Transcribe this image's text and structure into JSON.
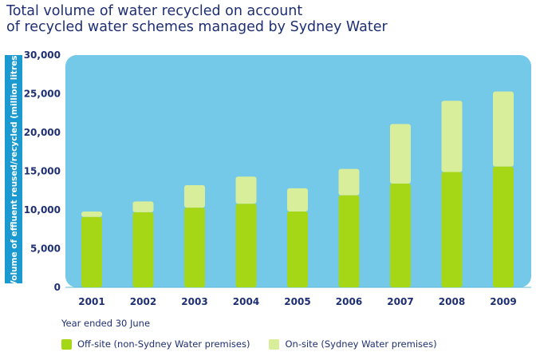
{
  "chart_data": {
    "type": "bar",
    "stacked": true,
    "title_lines": [
      "Total volume of water recycled on account",
      "of recycled water schemes managed by Sydney Water"
    ],
    "xlabel": "Year ended 30 June",
    "ylabel": "Volume of effluent reused/recycled (million litres)",
    "ylim": [
      0,
      30000
    ],
    "yticks": [
      0,
      5000,
      10000,
      15000,
      20000,
      25000,
      30000
    ],
    "ytick_labels": [
      "0",
      "5,000",
      "10,000",
      "15,000",
      "20,000",
      "25,000",
      "30,000"
    ],
    "categories": [
      "2001",
      "2002",
      "2003",
      "2004",
      "2005",
      "2006",
      "2007",
      "2008",
      "2009"
    ],
    "series": [
      {
        "name": "Off-site (non-Sydney Water premises)",
        "color": "#a6d717",
        "values": [
          9100,
          9700,
          10300,
          10800,
          9800,
          11900,
          13400,
          14900,
          15600
        ]
      },
      {
        "name": "On-site (Sydney Water premises)",
        "color": "#d9ee9b",
        "values": [
          700,
          1400,
          2900,
          3500,
          3000,
          3400,
          7700,
          9200,
          9700
        ]
      }
    ],
    "colors": {
      "plot_background": "#74c8e8",
      "ylabel_band": "#1a9ad0",
      "text": "#1e2f73"
    }
  }
}
